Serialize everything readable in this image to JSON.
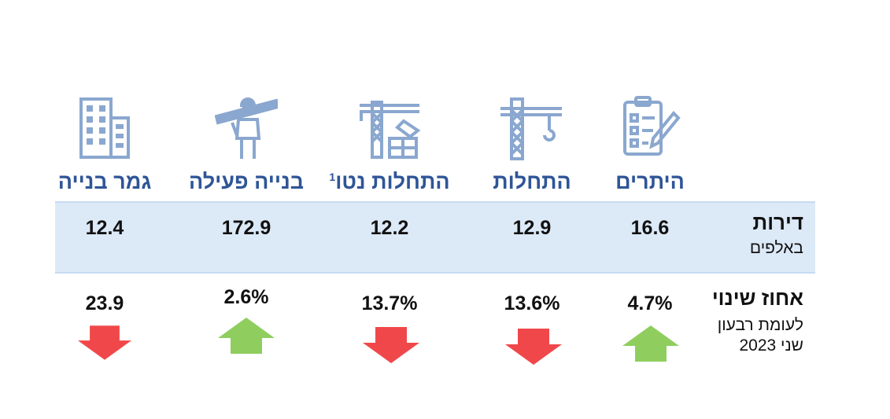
{
  "columns": [
    {
      "key": "permits",
      "title": "היתרים",
      "value": "16.6",
      "change": "4.7%",
      "direction": "up",
      "icon": "clipboard-checklist-icon"
    },
    {
      "key": "starts",
      "title": "התחלות",
      "value": "12.9",
      "change": "13.6%",
      "direction": "down",
      "icon": "tower-crane-icon"
    },
    {
      "key": "net_starts",
      "title": "התחלות נטו",
      "footnote": "1",
      "value": "12.2",
      "change": "13.7%",
      "direction": "down",
      "icon": "crane-construction-icon"
    },
    {
      "key": "active",
      "title": "בנייה פעילה",
      "value": "172.9",
      "change": "2.6%",
      "direction": "up",
      "icon": "construction-worker-icon"
    },
    {
      "key": "completed",
      "title": "גמר בנייה",
      "value": "12.4",
      "change": "23.9",
      "direction": "down",
      "icon": "building-icon"
    }
  ],
  "rows": {
    "units": {
      "label": "דירות",
      "sublabel": "באלפים"
    },
    "change": {
      "label": "אחוז שינוי",
      "sublabel_lines": [
        "לעומת רבעון",
        "שני 2023"
      ]
    }
  },
  "colors": {
    "header": "#2f5597",
    "band": "#dce9f7",
    "up": "#8fce5e",
    "down": "#f0484a",
    "icon": "#8aa7cf"
  }
}
